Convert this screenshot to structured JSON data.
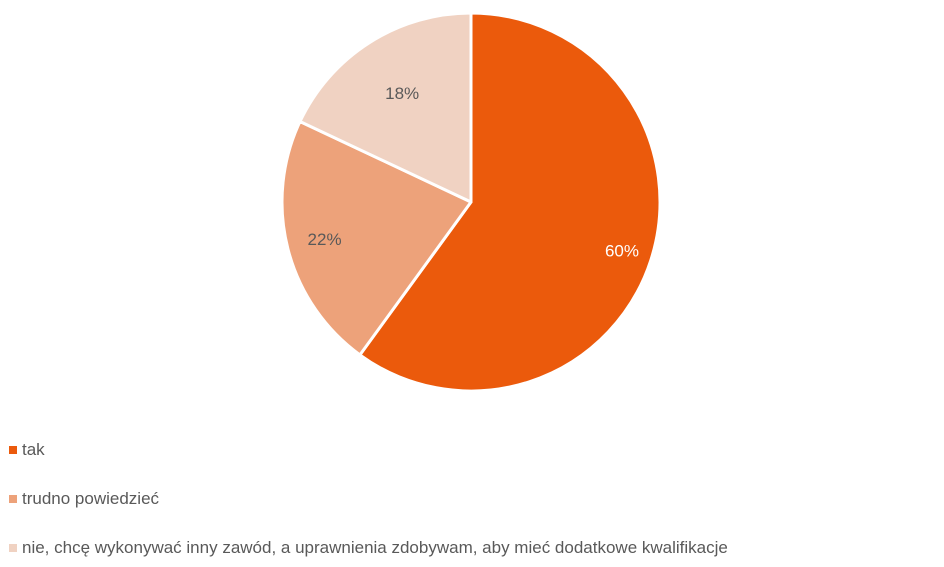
{
  "chart_data": {
    "type": "pie",
    "categories": [
      "tak",
      "trudno powiedzieć",
      "nie, chcę wykonywać inny zawód, a uprawnienia zdobywam, aby mieć dodatkowe kwalifikacje"
    ],
    "values": [
      60,
      22,
      18
    ],
    "value_labels": [
      "60%",
      "22%",
      "18%"
    ],
    "colors": [
      "#EB5A0C",
      "#EDA27A",
      "#F0D2C2"
    ],
    "label_colors": [
      "#FFFFFF",
      "#595959",
      "#595959"
    ],
    "legend_position": "bottom-left",
    "start_angle": "top",
    "direction": "clockwise"
  }
}
